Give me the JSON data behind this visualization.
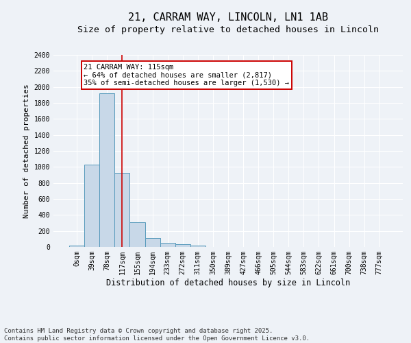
{
  "title_line1": "21, CARRAM WAY, LINCOLN, LN1 1AB",
  "title_line2": "Size of property relative to detached houses in Lincoln",
  "xlabel": "Distribution of detached houses by size in Lincoln",
  "ylabel": "Number of detached properties",
  "bar_labels": [
    "0sqm",
    "39sqm",
    "78sqm",
    "117sqm",
    "155sqm",
    "194sqm",
    "233sqm",
    "272sqm",
    "311sqm",
    "350sqm",
    "389sqm",
    "427sqm",
    "466sqm",
    "505sqm",
    "544sqm",
    "583sqm",
    "622sqm",
    "661sqm",
    "700sqm",
    "738sqm",
    "777sqm"
  ],
  "bar_values": [
    15,
    1030,
    1920,
    930,
    310,
    110,
    55,
    35,
    20,
    0,
    0,
    0,
    0,
    0,
    0,
    0,
    0,
    0,
    0,
    0,
    0
  ],
  "bar_color": "#c8d8e8",
  "bar_edge_color": "#5599bb",
  "ylim": [
    0,
    2400
  ],
  "yticks": [
    0,
    200,
    400,
    600,
    800,
    1000,
    1200,
    1400,
    1600,
    1800,
    2000,
    2200,
    2400
  ],
  "vline_x": 2.97,
  "vline_color": "#cc0000",
  "annotation_text_line1": "21 CARRAM WAY: 115sqm",
  "annotation_text_line2": "← 64% of detached houses are smaller (2,817)",
  "annotation_text_line3": "35% of semi-detached houses are larger (1,530) →",
  "annotation_box_color": "#cc0000",
  "annotation_fill_color": "#ffffff",
  "footer_line1": "Contains HM Land Registry data © Crown copyright and database right 2025.",
  "footer_line2": "Contains public sector information licensed under the Open Government Licence v3.0.",
  "bg_color": "#eef2f7",
  "grid_color": "#ffffff",
  "title_fontsize": 11,
  "subtitle_fontsize": 9.5,
  "tick_fontsize": 7,
  "ylabel_fontsize": 8,
  "xlabel_fontsize": 8.5,
  "footer_fontsize": 6.5,
  "ann_fontsize": 7.5
}
